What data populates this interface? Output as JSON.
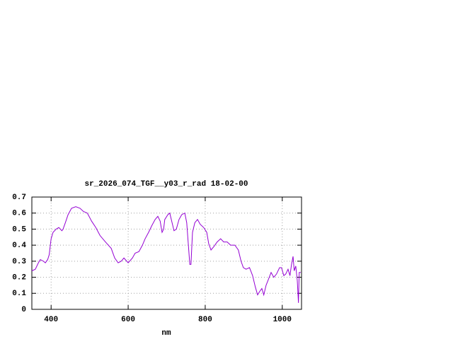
{
  "chart_data": {
    "type": "line",
    "title": "sr_2026_074_TGF__y03_r_rad 18-02-00",
    "x_label": "nm",
    "xlim": [
      350,
      1050
    ],
    "ylim": [
      0,
      0.7
    ],
    "xticks": [
      400,
      600,
      800,
      1000
    ],
    "yticks": [
      0,
      0.1,
      0.2,
      0.3,
      0.4,
      0.5,
      0.6,
      0.7
    ],
    "grid": true,
    "series": [
      {
        "color": "#9400d3",
        "x": [
          350,
          359,
          367,
          372,
          380,
          385,
          391,
          395,
          400,
          405,
          413,
          420,
          428,
          431,
          437,
          444,
          453,
          464,
          475,
          484,
          494,
          505,
          516,
          527,
          541,
          556,
          565,
          574,
          582,
          589,
          600,
          611,
          618,
          628,
          637,
          644,
          653,
          661,
          670,
          677,
          683,
          688,
          692,
          695,
          703,
          708,
          714,
          719,
          725,
          732,
          739,
          747,
          752,
          756,
          760,
          763,
          767,
          773,
          780,
          787,
          796,
          804,
          809,
          815,
          822,
          831,
          840,
          848,
          857,
          866,
          877,
          886,
          893,
          899,
          906,
          915,
          923,
          930,
          936,
          941,
          947,
          952,
          958,
          963,
          971,
          978,
          985,
          993,
          998,
          1004,
          1009,
          1015,
          1020,
          1024,
          1028,
          1031,
          1035,
          1039,
          1042,
          1044,
          1048
        ],
        "values": [
          0.24,
          0.25,
          0.29,
          0.31,
          0.3,
          0.29,
          0.31,
          0.34,
          0.44,
          0.48,
          0.5,
          0.51,
          0.49,
          0.5,
          0.54,
          0.59,
          0.63,
          0.64,
          0.63,
          0.61,
          0.6,
          0.55,
          0.51,
          0.46,
          0.42,
          0.38,
          0.32,
          0.29,
          0.3,
          0.32,
          0.29,
          0.32,
          0.35,
          0.36,
          0.4,
          0.44,
          0.48,
          0.52,
          0.56,
          0.58,
          0.55,
          0.48,
          0.5,
          0.56,
          0.59,
          0.6,
          0.54,
          0.49,
          0.5,
          0.56,
          0.59,
          0.6,
          0.54,
          0.41,
          0.28,
          0.28,
          0.48,
          0.54,
          0.56,
          0.53,
          0.51,
          0.48,
          0.41,
          0.37,
          0.39,
          0.42,
          0.44,
          0.42,
          0.42,
          0.4,
          0.4,
          0.37,
          0.3,
          0.26,
          0.25,
          0.26,
          0.21,
          0.14,
          0.09,
          0.11,
          0.13,
          0.09,
          0.15,
          0.18,
          0.23,
          0.2,
          0.22,
          0.26,
          0.26,
          0.21,
          0.22,
          0.25,
          0.21,
          0.28,
          0.33,
          0.24,
          0.27,
          0.18,
          0.04,
          0.23,
          0.23
        ]
      }
    ]
  }
}
